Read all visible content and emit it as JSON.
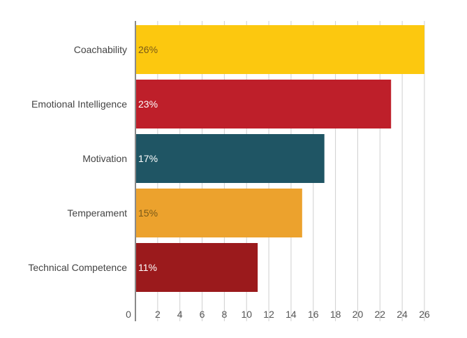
{
  "chart_data": {
    "type": "bar",
    "orientation": "horizontal",
    "title": "",
    "xlabel": "",
    "ylabel": "",
    "categories": [
      "Coachability",
      "Emotional Intelligence",
      "Motivation",
      "Temperament",
      "Technical Competence"
    ],
    "values": [
      26,
      23,
      17,
      15,
      11
    ],
    "data_labels": [
      "26%",
      "23%",
      "17%",
      "15%",
      "11%"
    ],
    "bar_colors": [
      "#FCC80F",
      "#BE1F2A",
      "#1F5564",
      "#ECA22D",
      "#9B1A1C"
    ],
    "data_label_colors": [
      "#7a5a18",
      "#ffffff",
      "#ffffff",
      "#7a5a18",
      "#ffffff"
    ],
    "xlim": [
      0,
      26
    ],
    "x_ticks": [
      0,
      2,
      4,
      6,
      8,
      10,
      12,
      14,
      16,
      18,
      20,
      22,
      24,
      26
    ],
    "grid": true,
    "legend": "none"
  }
}
